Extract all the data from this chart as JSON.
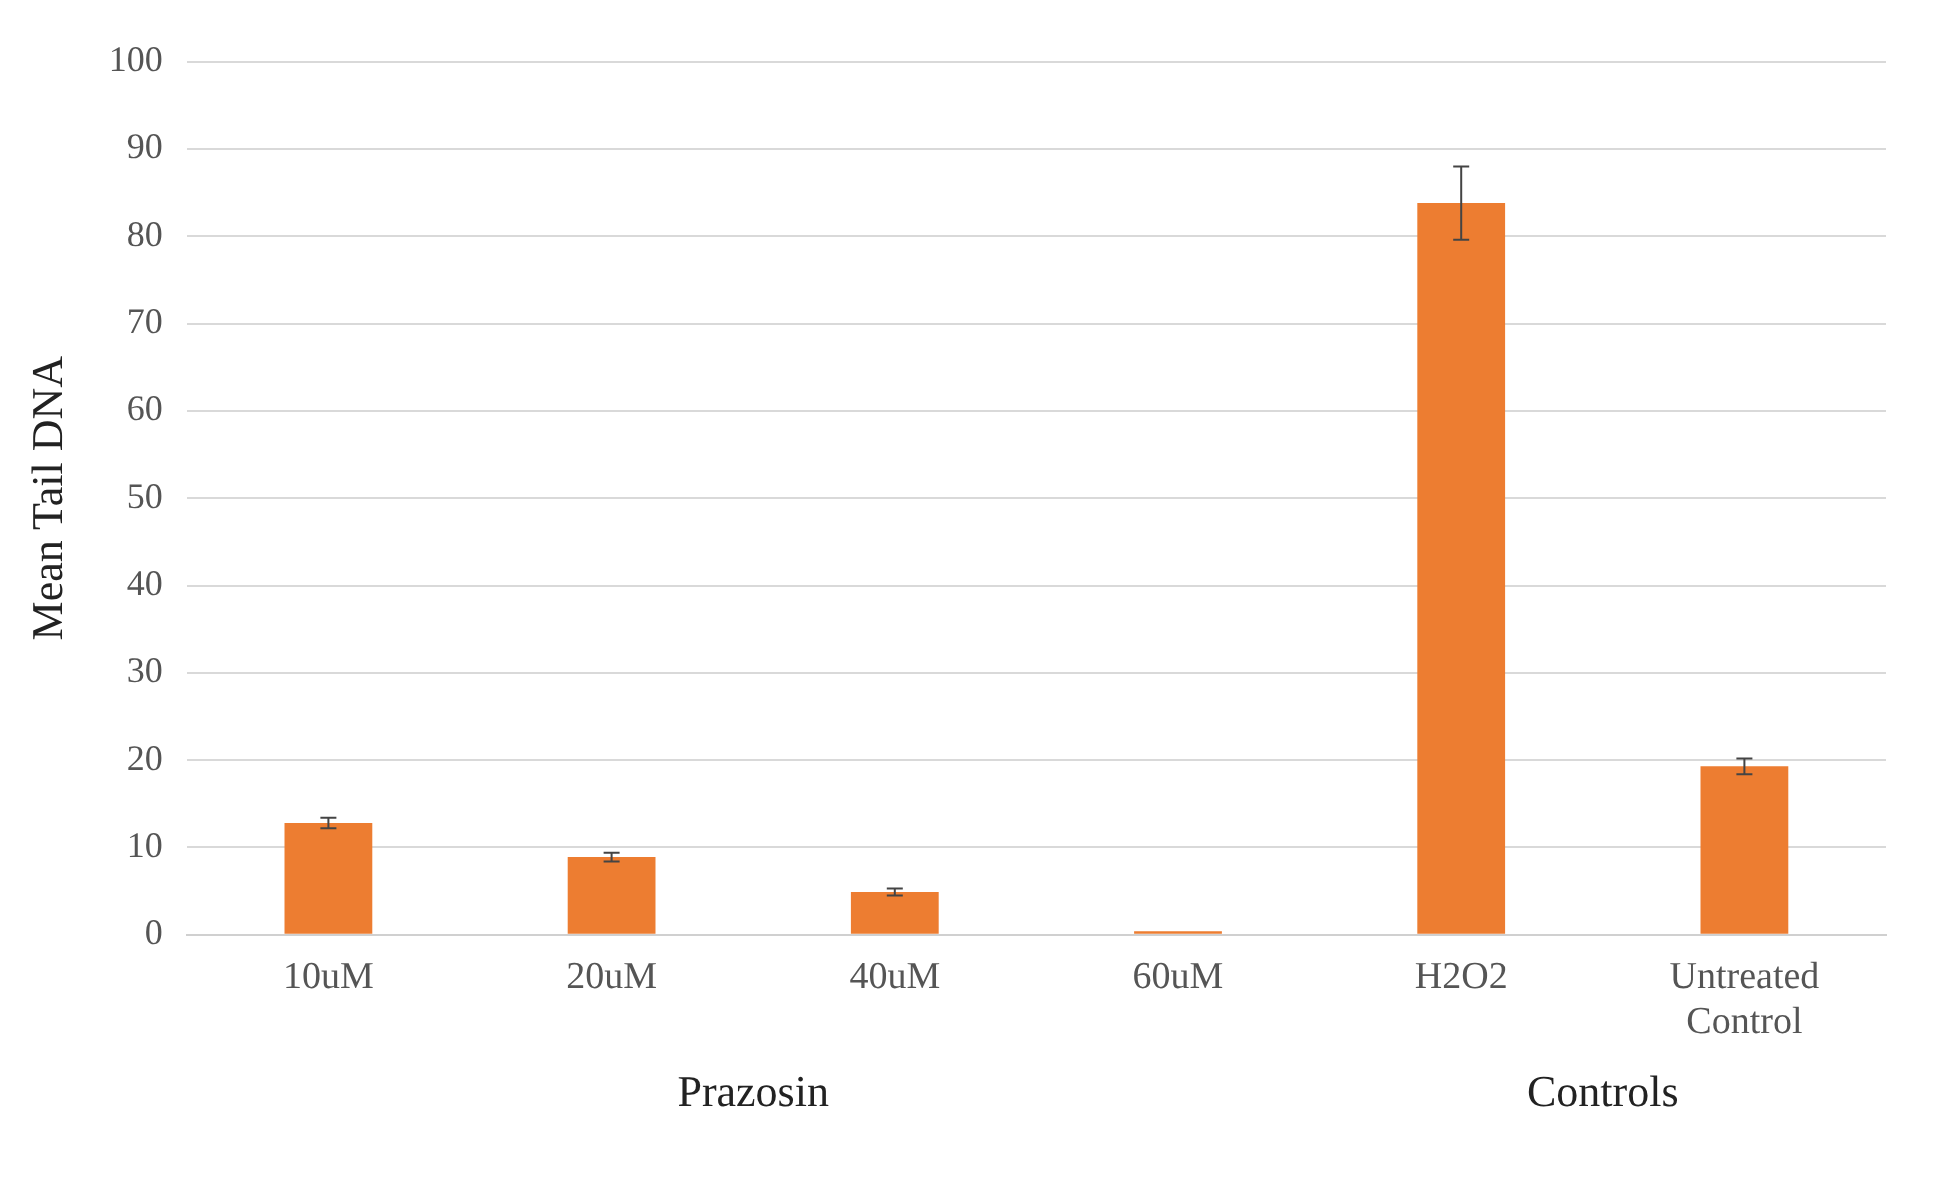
{
  "chart_data": {
    "type": "bar",
    "ylabel": "Mean Tail DNA",
    "categories": [
      "10uM",
      "20uM",
      "40uM",
      "60uM",
      "H2O2",
      "Untreated Control"
    ],
    "values": [
      12.8,
      8.9,
      4.9,
      0.4,
      83.8,
      19.3
    ],
    "errors": [
      0.6,
      0.5,
      0.4,
      null,
      4.2,
      0.9
    ],
    "color": "#ed7d31",
    "ylim": [
      0,
      100
    ],
    "yticks": [
      0,
      10,
      20,
      30,
      40,
      50,
      60,
      70,
      80,
      90,
      100
    ],
    "grid": "y",
    "legend": false,
    "annotations": [
      "Prazosin",
      "Controls"
    ]
  }
}
